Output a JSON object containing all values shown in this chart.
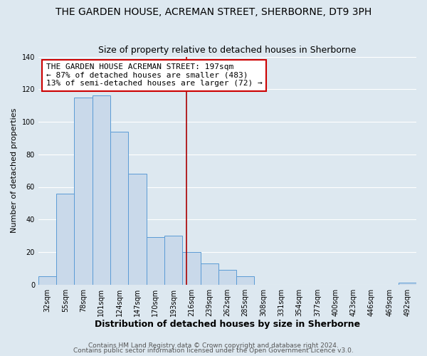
{
  "title": "THE GARDEN HOUSE, ACREMAN STREET, SHERBORNE, DT9 3PH",
  "subtitle": "Size of property relative to detached houses in Sherborne",
  "xlabel": "Distribution of detached houses by size in Sherborne",
  "ylabel": "Number of detached properties",
  "bar_labels": [
    "32sqm",
    "55sqm",
    "78sqm",
    "101sqm",
    "124sqm",
    "147sqm",
    "170sqm",
    "193sqm",
    "216sqm",
    "239sqm",
    "262sqm",
    "285sqm",
    "308sqm",
    "331sqm",
    "354sqm",
    "377sqm",
    "400sqm",
    "423sqm",
    "446sqm",
    "469sqm",
    "492sqm"
  ],
  "bar_values": [
    5,
    56,
    115,
    116,
    94,
    68,
    29,
    30,
    20,
    13,
    9,
    5,
    0,
    0,
    0,
    0,
    0,
    0,
    0,
    0,
    1
  ],
  "bar_color": "#c9d9ea",
  "bar_edgecolor": "#5b9bd5",
  "ylim": [
    0,
    140
  ],
  "yticks": [
    0,
    20,
    40,
    60,
    80,
    100,
    120,
    140
  ],
  "property_line_x": 7.72,
  "property_line_color": "#aa0000",
  "annotation_text": "THE GARDEN HOUSE ACREMAN STREET: 197sqm\n← 87% of detached houses are smaller (483)\n13% of semi-detached houses are larger (72) →",
  "annotation_box_facecolor": "#ffffff",
  "annotation_box_edgecolor": "#cc0000",
  "footer_text1": "Contains HM Land Registry data © Crown copyright and database right 2024.",
  "footer_text2": "Contains public sector information licensed under the Open Government Licence v3.0.",
  "background_color": "#dde8f0",
  "plot_background": "#dde8f0",
  "grid_color": "#ffffff",
  "title_fontsize": 10,
  "subtitle_fontsize": 9,
  "xlabel_fontsize": 9,
  "ylabel_fontsize": 8,
  "tick_fontsize": 7,
  "annotation_fontsize": 8,
  "footer_fontsize": 6.5
}
